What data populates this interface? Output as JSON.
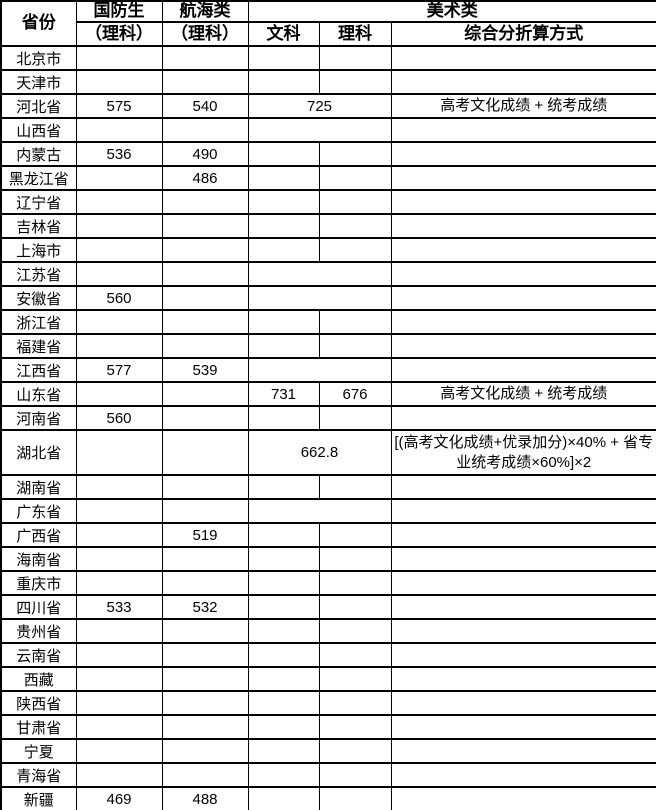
{
  "table": {
    "header": {
      "province": "省份",
      "guofang_line1": "国防生",
      "guofang_line2": "（理科）",
      "hanghai_line1": "航海类",
      "hanghai_line2": "（理科）",
      "meishu": "美术类",
      "wenke": "文科",
      "like": "理科",
      "formula": "综合分折算方式"
    },
    "rows": [
      {
        "province": "北京市",
        "guofang": "",
        "hanghai": "",
        "merged": false,
        "wenke": "",
        "like": "",
        "formula": "",
        "tall": false
      },
      {
        "province": "天津市",
        "guofang": "",
        "hanghai": "",
        "merged": false,
        "wenke": "",
        "like": "",
        "formula": "",
        "tall": false
      },
      {
        "province": "河北省",
        "guofang": "575",
        "hanghai": "540",
        "merged": true,
        "wenke": "725",
        "like": "",
        "formula": "高考文化成绩 + 统考成绩",
        "tall": false
      },
      {
        "province": "山西省",
        "guofang": "",
        "hanghai": "",
        "merged": true,
        "wenke": "",
        "like": "",
        "formula": "",
        "tall": false
      },
      {
        "province": "内蒙古",
        "guofang": "536",
        "hanghai": "490",
        "merged": false,
        "wenke": "",
        "like": "",
        "formula": "",
        "tall": false
      },
      {
        "province": "黑龙江省",
        "guofang": "",
        "hanghai": "486",
        "merged": false,
        "wenke": "",
        "like": "",
        "formula": "",
        "tall": false
      },
      {
        "province": "辽宁省",
        "guofang": "",
        "hanghai": "",
        "merged": false,
        "wenke": "",
        "like": "",
        "formula": "",
        "tall": false
      },
      {
        "province": "吉林省",
        "guofang": "",
        "hanghai": "",
        "merged": false,
        "wenke": "",
        "like": "",
        "formula": "",
        "tall": false
      },
      {
        "province": "上海市",
        "guofang": "",
        "hanghai": "",
        "merged": false,
        "wenke": "",
        "like": "",
        "formula": "",
        "tall": false
      },
      {
        "province": "江苏省",
        "guofang": "",
        "hanghai": "",
        "merged": true,
        "wenke": "",
        "like": "",
        "formula": "",
        "tall": false
      },
      {
        "province": "安徽省",
        "guofang": "560",
        "hanghai": "",
        "merged": true,
        "wenke": "",
        "like": "",
        "formula": "",
        "tall": false
      },
      {
        "province": "浙江省",
        "guofang": "",
        "hanghai": "",
        "merged": false,
        "wenke": "",
        "like": "",
        "formula": "",
        "tall": false
      },
      {
        "province": "福建省",
        "guofang": "",
        "hanghai": "",
        "merged": false,
        "wenke": "",
        "like": "",
        "formula": "",
        "tall": false
      },
      {
        "province": "江西省",
        "guofang": "577",
        "hanghai": "539",
        "merged": true,
        "wenke": "",
        "like": "",
        "formula": "",
        "tall": false
      },
      {
        "province": "山东省",
        "guofang": "",
        "hanghai": "",
        "merged": false,
        "wenke": "731",
        "like": "676",
        "formula": "高考文化成绩 + 统考成绩",
        "tall": false
      },
      {
        "province": "河南省",
        "guofang": "560",
        "hanghai": "",
        "merged": false,
        "wenke": "",
        "like": "",
        "formula": "",
        "tall": false
      },
      {
        "province": "湖北省",
        "guofang": "",
        "hanghai": "",
        "merged": true,
        "wenke": "662.8",
        "like": "",
        "formula": "[(高考文化成绩+优录加分)×40% + 省专业统考成绩×60%]×2",
        "tall": true
      },
      {
        "province": "湖南省",
        "guofang": "",
        "hanghai": "",
        "merged": false,
        "wenke": "",
        "like": "",
        "formula": "",
        "tall": false
      },
      {
        "province": "广东省",
        "guofang": "",
        "hanghai": "",
        "merged": true,
        "wenke": "",
        "like": "",
        "formula": "",
        "tall": false
      },
      {
        "province": "广西省",
        "guofang": "",
        "hanghai": "519",
        "merged": false,
        "wenke": "",
        "like": "",
        "formula": "",
        "tall": false
      },
      {
        "province": "海南省",
        "guofang": "",
        "hanghai": "",
        "merged": false,
        "wenke": "",
        "like": "",
        "formula": "",
        "tall": false
      },
      {
        "province": "重庆市",
        "guofang": "",
        "hanghai": "",
        "merged": false,
        "wenke": "",
        "like": "",
        "formula": "",
        "tall": false
      },
      {
        "province": "四川省",
        "guofang": "533",
        "hanghai": "532",
        "merged": false,
        "wenke": "",
        "like": "",
        "formula": "",
        "tall": false
      },
      {
        "province": "贵州省",
        "guofang": "",
        "hanghai": "",
        "merged": false,
        "wenke": "",
        "like": "",
        "formula": "",
        "tall": false
      },
      {
        "province": "云南省",
        "guofang": "",
        "hanghai": "",
        "merged": false,
        "wenke": "",
        "like": "",
        "formula": "",
        "tall": false
      },
      {
        "province": "西藏",
        "guofang": "",
        "hanghai": "",
        "merged": false,
        "wenke": "",
        "like": "",
        "formula": "",
        "tall": false
      },
      {
        "province": "陕西省",
        "guofang": "",
        "hanghai": "",
        "merged": false,
        "wenke": "",
        "like": "",
        "formula": "",
        "tall": false
      },
      {
        "province": "甘肃省",
        "guofang": "",
        "hanghai": "",
        "merged": false,
        "wenke": "",
        "like": "",
        "formula": "",
        "tall": false
      },
      {
        "province": "宁夏",
        "guofang": "",
        "hanghai": "",
        "merged": false,
        "wenke": "",
        "like": "",
        "formula": "",
        "tall": false
      },
      {
        "province": "青海省",
        "guofang": "",
        "hanghai": "",
        "merged": false,
        "wenke": "",
        "like": "",
        "formula": "",
        "tall": false
      },
      {
        "province": "新疆",
        "guofang": "469",
        "hanghai": "488",
        "merged": false,
        "wenke": "",
        "like": "",
        "formula": "",
        "tall": false
      }
    ]
  },
  "colors": {
    "border": "#000000",
    "text": "#000000",
    "background": "#ffffff"
  }
}
